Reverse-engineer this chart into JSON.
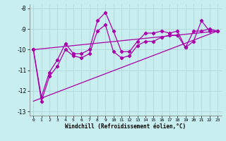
{
  "xlabel": "Windchill (Refroidissement éolien,°C)",
  "bg_color": "#c8eef0",
  "grid_color": "#b0d8d8",
  "line_color": "#aa00aa",
  "xlim": [
    -0.5,
    23.5
  ],
  "ylim": [
    -13.2,
    -7.8
  ],
  "yticks": [
    -13,
    -12,
    -11,
    -10,
    -9,
    -8
  ],
  "xticks": [
    0,
    1,
    2,
    3,
    4,
    5,
    6,
    7,
    8,
    9,
    10,
    11,
    12,
    13,
    14,
    15,
    16,
    17,
    18,
    19,
    20,
    21,
    22,
    23
  ],
  "series1_x": [
    0,
    1,
    2,
    3,
    4,
    5,
    6,
    7,
    8,
    9,
    10,
    11,
    12,
    13,
    14,
    15,
    16,
    17,
    18,
    19,
    20,
    21,
    22,
    23
  ],
  "series1_y": [
    -10.0,
    -12.3,
    -11.1,
    -10.5,
    -9.7,
    -10.2,
    -10.2,
    -10.0,
    -8.6,
    -8.2,
    -9.1,
    -10.1,
    -10.1,
    -9.6,
    -9.2,
    -9.2,
    -9.1,
    -9.2,
    -9.1,
    -9.9,
    -9.1,
    -9.1,
    -9.0,
    -9.1
  ],
  "series2_x": [
    0,
    1,
    2,
    3,
    4,
    5,
    6,
    7,
    8,
    9,
    10,
    11,
    12,
    13,
    14,
    15,
    16,
    17,
    18,
    19,
    20,
    21,
    22,
    23
  ],
  "series2_y": [
    -10.0,
    -12.5,
    -11.3,
    -10.8,
    -10.0,
    -10.3,
    -10.4,
    -10.2,
    -9.1,
    -8.8,
    -10.1,
    -10.4,
    -10.3,
    -9.8,
    -9.6,
    -9.6,
    -9.4,
    -9.3,
    -9.3,
    -9.9,
    -9.6,
    -8.6,
    -9.1,
    -9.1
  ],
  "series3_x": [
    0,
    23
  ],
  "series3_y": [
    -10.0,
    -9.1
  ],
  "series4_x": [
    0,
    23
  ],
  "series4_y": [
    -12.5,
    -9.1
  ],
  "marker": "D",
  "marker_size": 2.2,
  "line_width": 0.9
}
